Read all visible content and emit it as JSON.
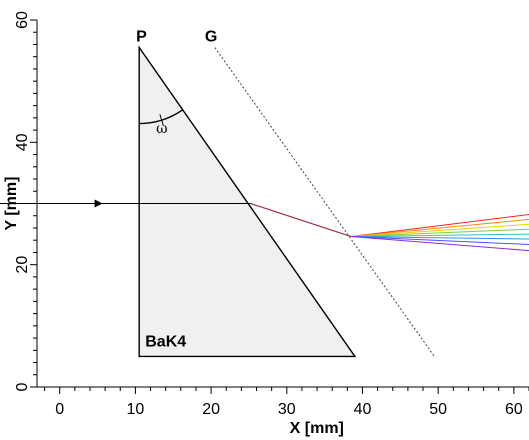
{
  "chart_data": {
    "type": "line",
    "title": "",
    "xlabel": "X [mm]",
    "ylabel": "Y [mm]",
    "xlim": [
      -3,
      62
    ],
    "ylim": [
      0,
      60
    ],
    "xticks": [
      0,
      10,
      20,
      30,
      40,
      50,
      60
    ],
    "yticks": [
      0,
      20,
      40,
      60
    ],
    "grid": false,
    "prism": {
      "label": "BaK4",
      "vertices": [
        [
          10.5,
          55.5
        ],
        [
          10.5,
          5
        ],
        [
          39,
          5
        ]
      ],
      "fill_color": "#f0f0f0",
      "edge_color": "#000000"
    },
    "vertex_label": {
      "text": "P",
      "x": 10.8,
      "y": 56.5
    },
    "angle_label": {
      "text": "ω",
      "x": 13.5,
      "y": 41.5
    },
    "guide_line": {
      "label": "G",
      "x": [
        20.5,
        49.5
      ],
      "y": [
        55.5,
        5
      ]
    },
    "guide_label": {
      "text": "G",
      "x": 20,
      "y": 56.5
    },
    "incident_ray": {
      "x": [
        -3,
        25.2
      ],
      "y": [
        30,
        30
      ],
      "arrow_at": 5
    },
    "refracted_ray": {
      "x": [
        25.2,
        38.5
      ],
      "y": [
        30,
        24.6
      ]
    },
    "dispersed_rays": {
      "origin": [
        38.5,
        24.6
      ],
      "x_end": 62,
      "y_ends": [
        28.2,
        27.4,
        26.6,
        25.8,
        25.0,
        24.2,
        23.3,
        22.3
      ],
      "colors": [
        "#ff2020",
        "#ff8c00",
        "#e6d000",
        "#78d23c",
        "#2cc8b4",
        "#3c8cff",
        "#5050ff",
        "#8a2be2"
      ]
    }
  }
}
